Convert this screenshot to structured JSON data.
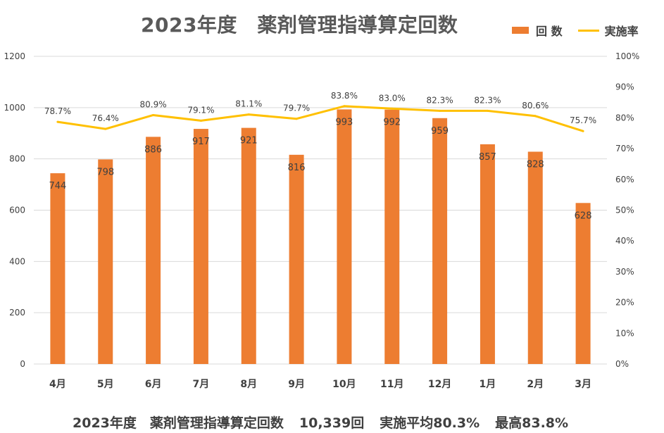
{
  "title": "2023年度　薬剤管理指導算定回数",
  "legend": {
    "bar_label": "回 数",
    "line_label": "実施率"
  },
  "colors": {
    "bar": "#ED7D31",
    "line": "#FFC000",
    "grid": "#D9D9D9",
    "text": "#404040"
  },
  "footer": {
    "label": "2023年度　薬剤管理指導算定回数",
    "total": "10,339回",
    "average": "実施平均80.3%",
    "max": "最高83.8%"
  },
  "chart_data": {
    "type": "bar",
    "title": "2023年度　薬剤管理指導算定回数",
    "categories": [
      "4月",
      "5月",
      "6月",
      "7月",
      "8月",
      "9月",
      "10月",
      "11月",
      "12月",
      "1月",
      "2月",
      "3月"
    ],
    "series": [
      {
        "name": "回 数",
        "type": "bar",
        "axis": "left",
        "values": [
          744,
          798,
          886,
          917,
          921,
          816,
          993,
          992,
          959,
          857,
          828,
          628
        ],
        "labels": [
          "744",
          "798",
          "886",
          "917",
          "921",
          "816",
          "993",
          "992",
          "959",
          "857",
          "828",
          "628"
        ]
      },
      {
        "name": "実施率",
        "type": "line",
        "axis": "right",
        "values": [
          78.7,
          76.4,
          80.9,
          79.1,
          81.1,
          79.7,
          83.8,
          83.0,
          82.3,
          82.3,
          80.6,
          75.7
        ],
        "labels": [
          "78.7%",
          "76.4%",
          "80.9%",
          "79.1%",
          "81.1%",
          "79.7%",
          "83.8%",
          "83.0%",
          "82.3%",
          "82.3%",
          "80.6%",
          "75.7%"
        ]
      }
    ],
    "y_left": {
      "min": 0,
      "max": 1200,
      "ticks": [
        "0",
        "200",
        "400",
        "600",
        "800",
        "1000",
        "1200"
      ]
    },
    "y_right": {
      "min": 0,
      "max": 100,
      "ticks": [
        "0%",
        "10%",
        "20%",
        "30%",
        "40%",
        "50%",
        "60%",
        "70%",
        "80%",
        "90%",
        "100%"
      ]
    },
    "grid": true,
    "legend_position": "top-right"
  }
}
